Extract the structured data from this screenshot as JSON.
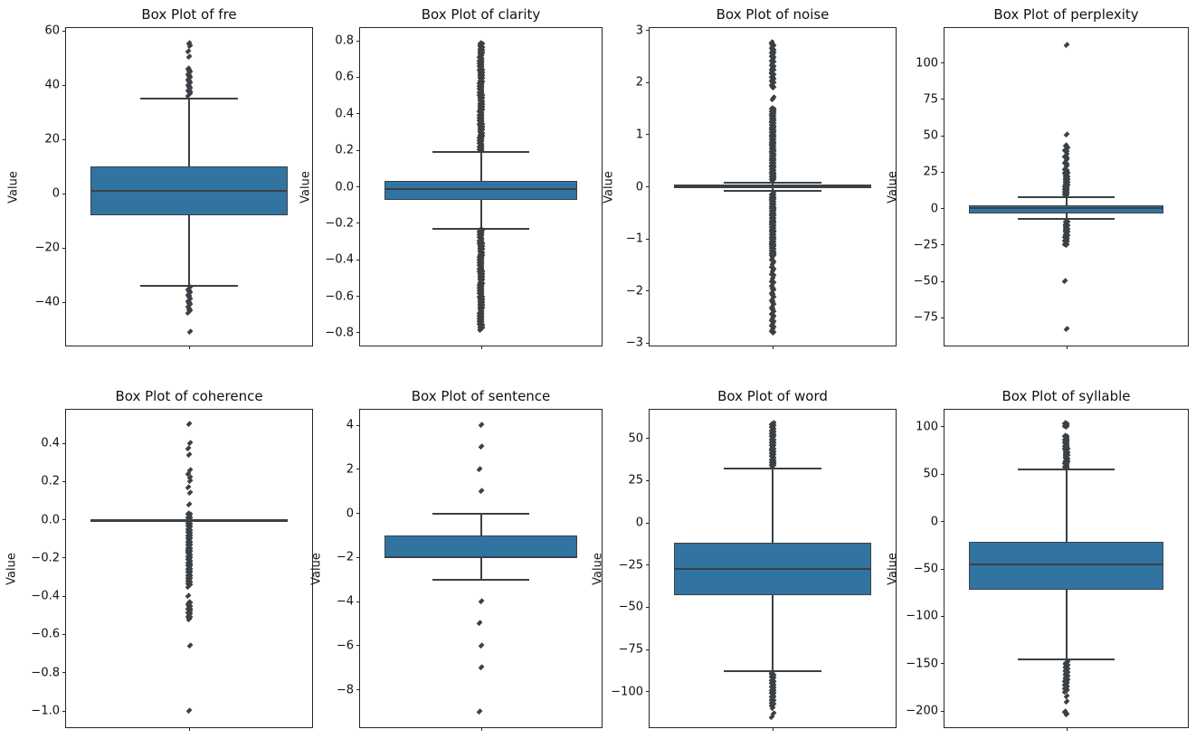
{
  "figure": {
    "background": "#ffffff",
    "box_fill_color": "#3274a1",
    "line_color": "#3b4045"
  },
  "chart_data": [
    {
      "type": "box",
      "title": "Box Plot of fre",
      "ylabel": "Value",
      "ylim": [
        -56,
        61
      ],
      "tick_values": [
        60,
        40,
        20,
        0,
        -20,
        -40
      ],
      "tick_labels": [
        "60",
        "40",
        "20",
        "0",
        "−20",
        "−40"
      ],
      "box": {
        "q1": -8,
        "median": 1,
        "q3": 10,
        "whisker_low": -34,
        "whisker_high": 35
      },
      "outliers": {
        "points": [
          55.5,
          54.5,
          52.5,
          50.5,
          -51
        ],
        "ranges": [
          {
            "from": 36,
            "to": 46,
            "count": 16
          },
          {
            "from": -34.5,
            "to": -44,
            "count": 14
          }
        ]
      }
    },
    {
      "type": "box",
      "title": "Box Plot of clarity",
      "ylabel": "Value",
      "ylim": [
        -0.87,
        0.87
      ],
      "tick_values": [
        0.8,
        0.6,
        0.4,
        0.2,
        0.0,
        -0.2,
        -0.4,
        -0.6,
        -0.8
      ],
      "tick_labels": [
        "0.8",
        "0.6",
        "0.4",
        "0.2",
        "0.0",
        "−0.2",
        "−0.4",
        "−0.6",
        "−0.8"
      ],
      "box": {
        "q1": -0.07,
        "median": -0.013,
        "q3": 0.031,
        "whisker_low": -0.23,
        "whisker_high": 0.19
      },
      "outliers": {
        "points": [],
        "ranges": [
          {
            "from": 0.195,
            "to": 0.785,
            "count": 110
          },
          {
            "from": -0.235,
            "to": -0.785,
            "count": 105
          }
        ]
      }
    },
    {
      "type": "box",
      "title": "Box Plot of noise",
      "ylabel": "Value",
      "ylim": [
        -3.05,
        3.05
      ],
      "tick_values": [
        3,
        2,
        1,
        0,
        -1,
        -2,
        -3
      ],
      "tick_labels": [
        "3",
        "2",
        "1",
        "0",
        "−1",
        "−2",
        "−3"
      ],
      "box": {
        "q1": -0.03,
        "median": 0.01,
        "q3": 0.05,
        "whisker_low": -0.08,
        "whisker_high": 0.08
      },
      "outliers": {
        "points": [
          1.68,
          1.72,
          2.78
        ],
        "ranges": [
          {
            "from": 0.12,
            "to": 1.5,
            "count": 90
          },
          {
            "from": 1.9,
            "to": 2.75,
            "count": 32
          },
          {
            "from": -0.12,
            "to": -1.35,
            "count": 80
          },
          {
            "from": -1.4,
            "to": -2.45,
            "count": 24
          },
          {
            "from": -2.5,
            "to": -2.8,
            "count": 10
          }
        ]
      }
    },
    {
      "type": "box",
      "title": "Box Plot of perplexity",
      "ylabel": "Value",
      "ylim": [
        -94,
        124
      ],
      "tick_values": [
        100,
        75,
        50,
        25,
        0,
        -25,
        -50,
        -75
      ],
      "tick_labels": [
        "100",
        "75",
        "50",
        "25",
        "0",
        "−25",
        "−50",
        "−75"
      ],
      "box": {
        "q1": -3.5,
        "median": 0.5,
        "q3": 2.5,
        "whisker_low": -7,
        "whisker_high": 8
      },
      "outliers": {
        "points": [
          51,
          112,
          -50,
          -83
        ],
        "ranges": [
          {
            "from": 9,
            "to": 25,
            "count": 26
          },
          {
            "from": 26,
            "to": 43,
            "count": 13
          },
          {
            "from": -9,
            "to": -25,
            "count": 22
          }
        ]
      }
    },
    {
      "type": "box",
      "title": "Box Plot of coherence",
      "ylabel": "Value",
      "ylim": [
        -1.085,
        0.575
      ],
      "tick_values": [
        0.4,
        0.2,
        0.0,
        -0.2,
        -0.4,
        -0.6,
        -0.8,
        -1.0
      ],
      "tick_labels": [
        "0.4",
        "0.2",
        "0.0",
        "−0.2",
        "−0.4",
        "−0.6",
        "−0.8",
        "−1.0"
      ],
      "box": {
        "q1": 0,
        "median": 0,
        "q3": 0,
        "whisker_low": 0,
        "whisker_high": 0
      },
      "outliers": {
        "points": [
          0.5,
          0.4,
          0.37,
          0.34,
          0.26,
          0.24,
          0.22,
          0.2,
          0.17,
          0.14,
          0.08,
          -0.4,
          -0.66,
          -1.0
        ],
        "ranges": [
          {
            "from": 0.03,
            "to": -0.35,
            "count": 70
          },
          {
            "from": -0.43,
            "to": -0.52,
            "count": 14
          }
        ]
      }
    },
    {
      "type": "box",
      "title": "Box Plot of sentence",
      "ylabel": "Value",
      "ylim": [
        -9.7,
        4.7
      ],
      "tick_values": [
        4,
        2,
        0,
        -2,
        -4,
        -6,
        -8
      ],
      "tick_labels": [
        "4",
        "2",
        "0",
        "−2",
        "−4",
        "−6",
        "−8"
      ],
      "box": {
        "q1": -2,
        "median": -2,
        "q3": -1,
        "whisker_low": -3,
        "whisker_high": 0
      },
      "outliers": {
        "points": [
          4,
          3,
          2,
          1,
          -4,
          -5,
          -6,
          -7,
          -9
        ],
        "ranges": []
      }
    },
    {
      "type": "box",
      "title": "Box Plot of word",
      "ylabel": "Value",
      "ylim": [
        -121,
        67
      ],
      "tick_values": [
        50,
        25,
        0,
        -25,
        -50,
        -75,
        -100
      ],
      "tick_labels": [
        "50",
        "25",
        "0",
        "−25",
        "−50",
        "−75",
        "−100"
      ],
      "box": {
        "q1": -43,
        "median": -27.5,
        "q3": -12,
        "whisker_low": -88,
        "whisker_high": 32
      },
      "outliers": {
        "points": [
          -110,
          -113,
          -115
        ],
        "ranges": [
          {
            "from": 33,
            "to": 59,
            "count": 45
          },
          {
            "from": -89,
            "to": -108,
            "count": 30
          }
        ]
      }
    },
    {
      "type": "box",
      "title": "Box Plot of syllable",
      "ylabel": "Value",
      "ylim": [
        -217,
        118
      ],
      "tick_values": [
        100,
        50,
        0,
        -50,
        -100,
        -150,
        -200
      ],
      "tick_labels": [
        "100",
        "50",
        "0",
        "−50",
        "−100",
        "−150",
        "−200"
      ],
      "box": {
        "q1": -72,
        "median": -45,
        "q3": -21,
        "whisker_low": -145,
        "whisker_high": 55
      },
      "outliers": {
        "points": [
          -185,
          -190,
          -201,
          -204
        ],
        "ranges": [
          {
            "from": 100,
            "to": 104,
            "count": 5
          },
          {
            "from": 56,
            "to": 90,
            "count": 32
          },
          {
            "from": -148,
            "to": -180,
            "count": 26
          }
        ]
      }
    }
  ]
}
